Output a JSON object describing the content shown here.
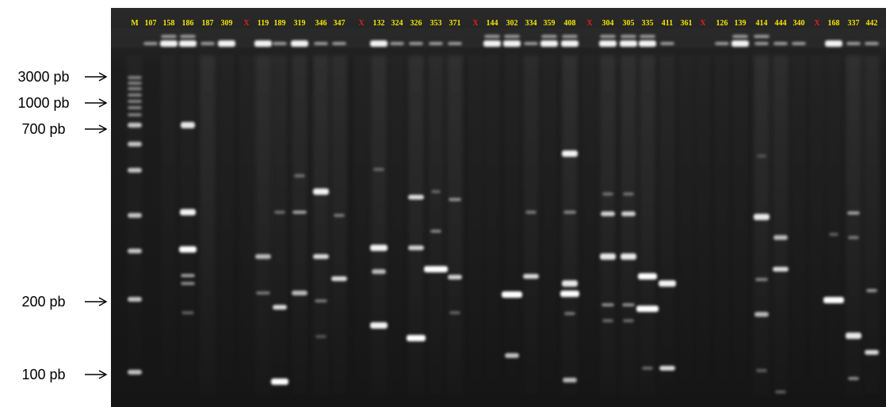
{
  "gel": {
    "lane_labels": [
      "M",
      "107",
      "158",
      "186",
      "187",
      "309",
      "X",
      "119",
      "189",
      "319",
      "346",
      "347",
      "X",
      "132",
      "324",
      "326",
      "353",
      "371",
      "X",
      "144",
      "302",
      "334",
      "359",
      "408",
      "X",
      "304",
      "305",
      "335",
      "411",
      "361",
      "X",
      "126",
      "139",
      "414",
      "444",
      "340",
      "X",
      "168",
      "337",
      "442"
    ],
    "separator_label": "X",
    "colors": {
      "lane_label": "#f2e600",
      "separator_label": "#e0201a",
      "gel_background": "#1c1c1c",
      "band": "#ffffff",
      "marker_text": "#000000"
    }
  },
  "size_markers": [
    {
      "label": "3000 pb"
    },
    {
      "label": "1000 pb"
    },
    {
      "label": "700 pb"
    },
    {
      "label": "200 pb"
    },
    {
      "label": "100 pb"
    }
  ],
  "icons": {
    "marker_arrow": "right-arrow-icon"
  }
}
